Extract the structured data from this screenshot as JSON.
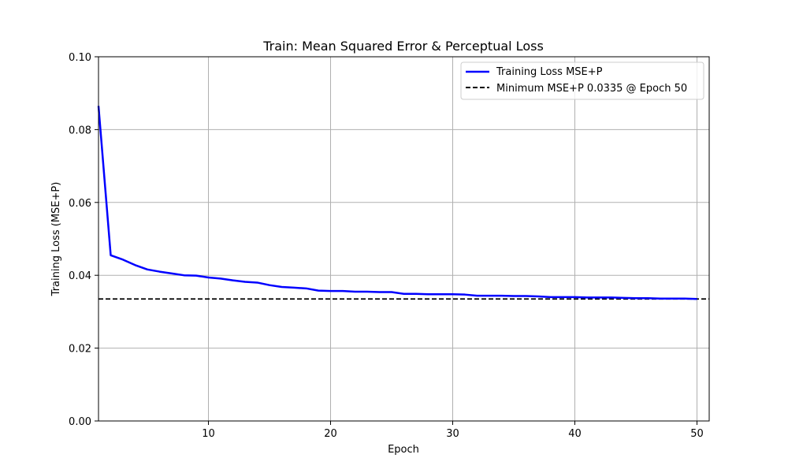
{
  "chart_data": {
    "type": "line",
    "title": "Train: Mean Squared Error & Perceptual Loss",
    "xlabel": "Epoch",
    "ylabel": "Training Loss (MSE+P)",
    "xlim": [
      1,
      51
    ],
    "ylim": [
      0.0,
      0.1
    ],
    "x_ticks": [
      10,
      20,
      30,
      40,
      50
    ],
    "x_tick_labels": [
      "10",
      "20",
      "30",
      "40",
      "50"
    ],
    "y_ticks": [
      0.0,
      0.02,
      0.04,
      0.06,
      0.08,
      0.1
    ],
    "y_tick_labels": [
      "0.00",
      "0.02",
      "0.04",
      "0.06",
      "0.08",
      "0.10"
    ],
    "grid": true,
    "legend_position": "top-right",
    "series": [
      {
        "name": "Training Loss MSE+P",
        "color": "#0000ff",
        "style": "solid",
        "x": [
          1,
          2,
          3,
          4,
          5,
          6,
          7,
          8,
          9,
          10,
          11,
          12,
          13,
          14,
          15,
          16,
          17,
          18,
          19,
          20,
          21,
          22,
          23,
          24,
          25,
          26,
          27,
          28,
          29,
          30,
          31,
          32,
          33,
          34,
          35,
          36,
          37,
          38,
          39,
          40,
          41,
          42,
          43,
          44,
          45,
          46,
          47,
          48,
          49,
          50
        ],
        "values": [
          0.0865,
          0.0455,
          0.0443,
          0.0428,
          0.0416,
          0.041,
          0.0405,
          0.04,
          0.0399,
          0.0394,
          0.0391,
          0.0386,
          0.0382,
          0.038,
          0.0373,
          0.0368,
          0.0366,
          0.0364,
          0.0358,
          0.0357,
          0.0357,
          0.0355,
          0.0355,
          0.0354,
          0.0354,
          0.0349,
          0.0349,
          0.0348,
          0.0348,
          0.0348,
          0.0347,
          0.0344,
          0.0344,
          0.0344,
          0.0343,
          0.0343,
          0.0342,
          0.034,
          0.034,
          0.034,
          0.0339,
          0.0339,
          0.0339,
          0.0338,
          0.0337,
          0.0337,
          0.0336,
          0.0336,
          0.0336,
          0.0335
        ]
      }
    ],
    "reference_line": {
      "name": "Minimum MSE+P 0.0335 @ Epoch 50",
      "y": 0.0335,
      "color": "#000000",
      "style": "dashed"
    }
  }
}
